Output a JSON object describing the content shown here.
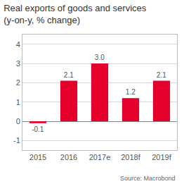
{
  "chart_data": {
    "type": "bar",
    "title": "Real exports of goods and services (y-on-y, % change)",
    "categories": [
      "2015",
      "2016",
      "2017e",
      "2018f",
      "2019f"
    ],
    "values": [
      -0.1,
      2.1,
      3.0,
      1.2,
      2.1
    ],
    "value_labels": [
      "-0.1",
      "2.1",
      "3.0",
      "1.2",
      "2.1"
    ],
    "color": "#e4002b",
    "ylim": [
      -1.5,
      4.5
    ],
    "yticks": [
      -1,
      0,
      1,
      2,
      3,
      4
    ],
    "grid": true,
    "data_labels": true,
    "annotations": [
      "Source: Macrobond"
    ]
  }
}
